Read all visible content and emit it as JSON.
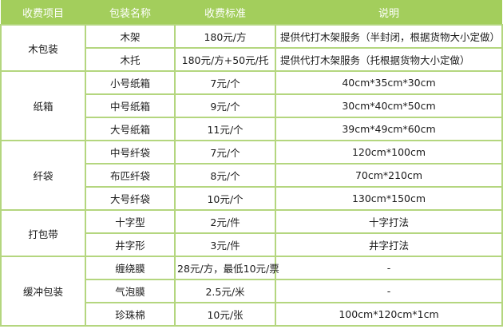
{
  "colors": {
    "header_bg": "#a3ce5c",
    "header_text": "#ffffff",
    "border": "#b4d67f",
    "body_text": "#1b1b1b"
  },
  "table": {
    "headers": [
      {
        "key": "fee-item",
        "label": "收费项目"
      },
      {
        "key": "package-name",
        "label": "包装名称"
      },
      {
        "key": "fee-standard",
        "label": "收费标准"
      },
      {
        "key": "note",
        "label": "说明"
      }
    ],
    "groups": [
      {
        "item": "木包装",
        "rows": [
          {
            "name": "木架",
            "price": "180元/方",
            "note": "提供代打木架服务（半封闭，根据货物大小定做）",
            "note_align": "left"
          },
          {
            "name": "木托",
            "price": "180元/方+50元/托",
            "note": "提供代打木架服务（托根据货物大小定做）",
            "note_align": "left"
          }
        ]
      },
      {
        "item": "纸箱",
        "rows": [
          {
            "name": "小号纸箱",
            "price": "7元/个",
            "note": "40cm*35cm*30cm",
            "note_align": "center"
          },
          {
            "name": "中号纸箱",
            "price": "9元/个",
            "note": "30cm*40cm*50cm",
            "note_align": "center"
          },
          {
            "name": "大号纸箱",
            "price": "11元/个",
            "note": "39cm*49cm*60cm",
            "note_align": "center"
          }
        ]
      },
      {
        "item": "纤袋",
        "rows": [
          {
            "name": "中号纤袋",
            "price": "7元/个",
            "note": "120cm*100cm",
            "note_align": "center"
          },
          {
            "name": "布匹纤袋",
            "price": "8元/个",
            "note": "70cm*210cm",
            "note_align": "center"
          },
          {
            "name": "大号纤袋",
            "price": "10元/个",
            "note": "130cm*150cm",
            "note_align": "center"
          }
        ]
      },
      {
        "item": "打包带",
        "rows": [
          {
            "name": "十字型",
            "price": "2元/件",
            "note": "十字打法",
            "note_align": "center"
          },
          {
            "name": "井字形",
            "price": "3元/件",
            "note": "井字打法",
            "note_align": "center"
          }
        ]
      },
      {
        "item": "缓冲包装",
        "rows": [
          {
            "name": "缠绕膜",
            "price": "28元/方，最低10元/票",
            "note": "-",
            "note_align": "center"
          },
          {
            "name": "气泡膜",
            "price": "2.5元/米",
            "note": "-",
            "note_align": "center"
          },
          {
            "name": "珍珠棉",
            "price": "10元/张",
            "note": "100cm*120cm*1cm",
            "note_align": "center"
          }
        ]
      }
    ]
  }
}
